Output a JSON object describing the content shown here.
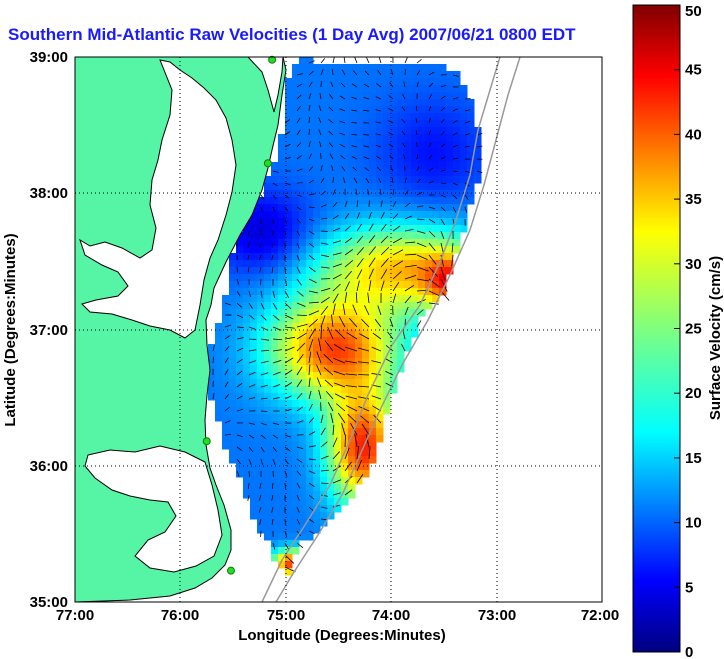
{
  "title": "Southern Mid-Atlantic Raw Velocities (1 Day Avg) 2007/06/21 0800 EDT",
  "x_axis": {
    "label": "Longitude (Degrees:Minutes)",
    "ticks": [
      "77:00",
      "76:00",
      "75:00",
      "74:00",
      "73:00",
      "72:00"
    ],
    "range": [
      -77,
      -72
    ]
  },
  "y_axis": {
    "label": "Latitude (Degrees:Minutes)",
    "ticks": [
      "39:00",
      "38:00",
      "37:00",
      "36:00",
      "35:00"
    ],
    "range": [
      35,
      39
    ]
  },
  "colorbar": {
    "label": "Surface Velocity (cm/s)",
    "ticks": [
      "0",
      "5",
      "10",
      "15",
      "20",
      "25",
      "30",
      "35",
      "40",
      "45",
      "50"
    ],
    "range": [
      0,
      50
    ],
    "colormap": "jet"
  },
  "grid": "dotted",
  "colors": {
    "land": "#55f5a5",
    "title": "#1a1aff",
    "station": "#22dd22",
    "bathymetry": "#999999"
  },
  "stations": [
    {
      "lon": -75.13,
      "lat": 38.98
    },
    {
      "lon": -75.17,
      "lat": 38.22
    },
    {
      "lon": -75.75,
      "lat": 36.18
    },
    {
      "lon": -75.52,
      "lat": 35.23
    }
  ]
}
